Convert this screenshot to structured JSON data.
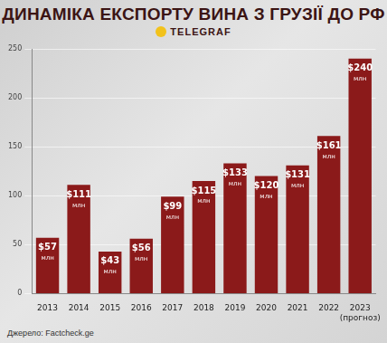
{
  "chart_data": {
    "type": "bar",
    "title": "ДИНАМІКА ЕКСПОРТУ ВИНА З ГРУЗІЇ ДО РФ",
    "subtitle": "TELEGRAF",
    "annotations": [
      "Джерело: Factcheck.ge"
    ],
    "categories": [
      "2013",
      "2014",
      "2015",
      "2016",
      "2017",
      "2018",
      "2019",
      "2020",
      "2021",
      "2022",
      [
        "2023",
        "(прогноз)"
      ]
    ],
    "values": [
      57,
      111,
      43,
      56,
      99,
      115,
      133,
      120,
      131,
      161,
      240
    ],
    "value_labels": [
      "$57 млн",
      "$111 млн",
      "$43 млн",
      "$56 млн",
      "$99 млн",
      "$115 млн",
      "$133 млн",
      "$120 млн",
      "$131 млн",
      "$161 млн",
      "$240 млн"
    ],
    "color": "#8b1a1a",
    "ylim": [
      0,
      250
    ],
    "yticks": [
      0,
      50,
      100,
      150,
      200,
      250
    ],
    "grid": true,
    "data_labels": true
  }
}
